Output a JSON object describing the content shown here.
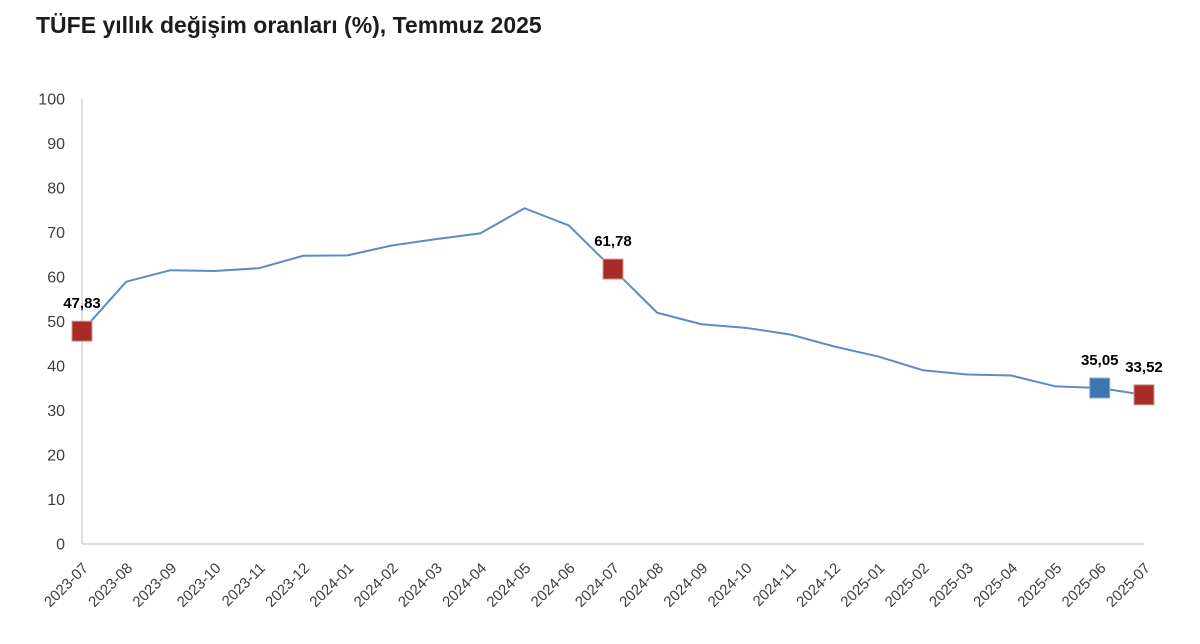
{
  "title": "TÜFE yıllık değişim oranları (%), Temmuz 2025",
  "chart_data": {
    "type": "line",
    "title": "TÜFE yıllık değişim oranları (%), Temmuz 2025",
    "xlabel": "",
    "ylabel": "",
    "ylim": [
      0,
      100
    ],
    "yticks": [
      0,
      10,
      20,
      30,
      40,
      50,
      60,
      70,
      80,
      90,
      100
    ],
    "grid": false,
    "legend": "none",
    "categories": [
      "2023-07",
      "2023-08",
      "2023-09",
      "2023-10",
      "2023-11",
      "2023-12",
      "2024-01",
      "2024-02",
      "2024-03",
      "2024-04",
      "2024-05",
      "2024-06",
      "2024-07",
      "2024-08",
      "2024-09",
      "2024-10",
      "2024-11",
      "2024-12",
      "2025-01",
      "2025-02",
      "2025-03",
      "2025-04",
      "2025-05",
      "2025-06",
      "2025-07"
    ],
    "values": [
      47.83,
      58.94,
      61.53,
      61.36,
      61.98,
      64.77,
      64.86,
      67.07,
      68.5,
      69.8,
      75.45,
      71.6,
      61.78,
      51.97,
      49.38,
      48.58,
      47.09,
      44.38,
      42.12,
      39.05,
      38.1,
      37.86,
      35.41,
      35.05,
      33.52
    ],
    "highlights": [
      {
        "index": 0,
        "label": "47,83",
        "color": "#a92b26",
        "border": "#d09a95"
      },
      {
        "index": 12,
        "label": "61,78",
        "color": "#a92b26",
        "border": "#d09a95"
      },
      {
        "index": 23,
        "label": "35,05",
        "color": "#3f74b2",
        "border": "#8fafd6"
      },
      {
        "index": 24,
        "label": "33,52",
        "color": "#a92b26",
        "border": "#d09a95"
      }
    ],
    "marker_size": 20,
    "colors": {
      "line": "#5b8cc8",
      "axis": "#d4d4d4",
      "tick_text": "#3d3d3d",
      "value_text": "#000000",
      "title_text": "#1c1c1c",
      "background": "#ffffff"
    }
  }
}
